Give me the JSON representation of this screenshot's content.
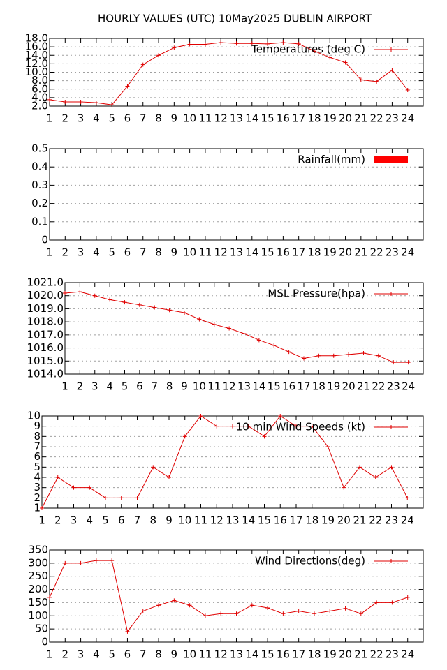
{
  "title": "HOURLY VALUES (UTC) 10May2025  DUBLIN AIRPORT",
  "chart_data": [
    {
      "type": "line",
      "x": [
        1,
        2,
        3,
        4,
        5,
        6,
        7,
        8,
        9,
        10,
        11,
        12,
        13,
        14,
        15,
        16,
        17,
        18,
        19,
        20,
        21,
        22,
        23,
        24
      ],
      "xlim": [
        1,
        25
      ],
      "xticks": [
        1,
        2,
        3,
        4,
        5,
        6,
        7,
        8,
        9,
        10,
        11,
        12,
        13,
        14,
        15,
        16,
        17,
        18,
        19,
        20,
        21,
        22,
        23,
        24
      ],
      "ylim": [
        2,
        18
      ],
      "yticks": [
        {
          "value": 2,
          "label": "2.0"
        },
        {
          "value": 4,
          "label": "4.0"
        },
        {
          "value": 6,
          "label": "6.0"
        },
        {
          "value": 8,
          "label": "8.0"
        },
        {
          "value": 10,
          "label": "10.0"
        },
        {
          "value": 12,
          "label": "12.0"
        },
        {
          "value": 14,
          "label": "14.0"
        },
        {
          "value": 16,
          "label": "16.0"
        },
        {
          "value": 18,
          "label": "18.0"
        }
      ],
      "grid": true,
      "legend": "top right",
      "series": [
        {
          "name": "Temperatures (deg C)",
          "color": "#e00000",
          "values": [
            3.5,
            3.0,
            3.0,
            2.8,
            2.3,
            6.7,
            11.8,
            14.0,
            15.8,
            16.6,
            16.6,
            17.0,
            16.8,
            16.8,
            16.7,
            17.0,
            16.7,
            15.0,
            13.5,
            12.3,
            8.2,
            7.8,
            10.5,
            5.8
          ]
        }
      ]
    },
    {
      "type": "bar",
      "x": [
        1,
        2,
        3,
        4,
        5,
        6,
        7,
        8,
        9,
        10,
        11,
        12,
        13,
        14,
        15,
        16,
        17,
        18,
        19,
        20,
        21,
        22,
        23,
        24
      ],
      "xlim": [
        1,
        25
      ],
      "xticks": [
        1,
        2,
        3,
        4,
        5,
        6,
        7,
        8,
        9,
        10,
        11,
        12,
        13,
        14,
        15,
        16,
        17,
        18,
        19,
        20,
        21,
        22,
        23,
        24
      ],
      "ylim": [
        0,
        0.5
      ],
      "yticks": [
        0,
        0.1,
        0.2,
        0.3,
        0.4,
        0.5
      ],
      "grid": true,
      "legend": "top right",
      "series": [
        {
          "name": "Rainfall(mm)",
          "color": "#ff0000",
          "values": [
            0,
            0,
            0,
            0,
            0,
            0,
            0,
            0,
            0,
            0,
            0,
            0,
            0,
            0,
            0,
            0,
            0,
            0,
            0,
            0,
            0,
            0,
            0,
            0
          ]
        }
      ]
    },
    {
      "type": "line",
      "x": [
        1,
        2,
        3,
        4,
        5,
        6,
        7,
        8,
        9,
        10,
        11,
        12,
        13,
        14,
        15,
        16,
        17,
        18,
        19,
        20,
        21,
        22,
        23,
        24
      ],
      "xlim": [
        1,
        25
      ],
      "xticks": [
        1,
        2,
        3,
        4,
        5,
        6,
        7,
        8,
        9,
        10,
        11,
        12,
        13,
        14,
        15,
        16,
        17,
        18,
        19,
        20,
        21,
        22,
        23,
        24
      ],
      "ylim": [
        1014,
        1021
      ],
      "yticks": [
        {
          "value": 1014,
          "label": "1014.0"
        },
        {
          "value": 1015,
          "label": "1015.0"
        },
        {
          "value": 1016,
          "label": "1016.0"
        },
        {
          "value": 1017,
          "label": "1017.0"
        },
        {
          "value": 1018,
          "label": "1018.0"
        },
        {
          "value": 1019,
          "label": "1019.0"
        },
        {
          "value": 1020,
          "label": "1020.0"
        },
        {
          "value": 1021,
          "label": "1021.0"
        }
      ],
      "grid": true,
      "legend": "top right",
      "series": [
        {
          "name": "MSL Pressure(hpa)",
          "color": "#e00000",
          "values": [
            1020.2,
            1020.3,
            1020.0,
            1019.7,
            1019.5,
            1019.3,
            1019.1,
            1018.9,
            1018.7,
            1018.2,
            1017.8,
            1017.5,
            1017.1,
            1016.6,
            1016.2,
            1015.7,
            1015.2,
            1015.4,
            1015.4,
            1015.5,
            1015.6,
            1015.4,
            1014.9,
            1014.9
          ]
        }
      ]
    },
    {
      "type": "line",
      "x": [
        1,
        2,
        3,
        4,
        5,
        6,
        7,
        8,
        9,
        10,
        11,
        12,
        13,
        14,
        15,
        16,
        17,
        18,
        19,
        20,
        21,
        22,
        23,
        24
      ],
      "xlim": [
        1,
        25
      ],
      "xticks": [
        1,
        2,
        3,
        4,
        5,
        6,
        7,
        8,
        9,
        10,
        11,
        12,
        13,
        14,
        15,
        16,
        17,
        18,
        19,
        20,
        21,
        22,
        23,
        24
      ],
      "ylim": [
        1,
        10
      ],
      "yticks": [
        1,
        2,
        3,
        4,
        5,
        6,
        7,
        8,
        9,
        10
      ],
      "grid": true,
      "legend": "top right",
      "series": [
        {
          "name": "10 min Wind Speeds (kt)",
          "color": "#e00000",
          "values": [
            1,
            4,
            3,
            3,
            2,
            2,
            2,
            5,
            4,
            8,
            10,
            9,
            9,
            9,
            8,
            10,
            9,
            9,
            7,
            3,
            5,
            4,
            5,
            2
          ]
        }
      ]
    },
    {
      "type": "line",
      "x": [
        1,
        2,
        3,
        4,
        5,
        6,
        7,
        8,
        9,
        10,
        11,
        12,
        13,
        14,
        15,
        16,
        17,
        18,
        19,
        20,
        21,
        22,
        23,
        24
      ],
      "xlim": [
        1,
        25
      ],
      "xticks": [
        1,
        2,
        3,
        4,
        5,
        6,
        7,
        8,
        9,
        10,
        11,
        12,
        13,
        14,
        15,
        16,
        17,
        18,
        19,
        20,
        21,
        22,
        23,
        24
      ],
      "ylim": [
        0,
        350
      ],
      "yticks": [
        0,
        50,
        100,
        150,
        200,
        250,
        300,
        350
      ],
      "grid": true,
      "legend": "top right",
      "series": [
        {
          "name": "Wind Directions(deg)",
          "color": "#e00000",
          "values": [
            170,
            300,
            300,
            310,
            310,
            40,
            118,
            140,
            158,
            140,
            100,
            108,
            108,
            140,
            130,
            108,
            118,
            108,
            118,
            128,
            108,
            150,
            150,
            170
          ]
        }
      ]
    }
  ]
}
